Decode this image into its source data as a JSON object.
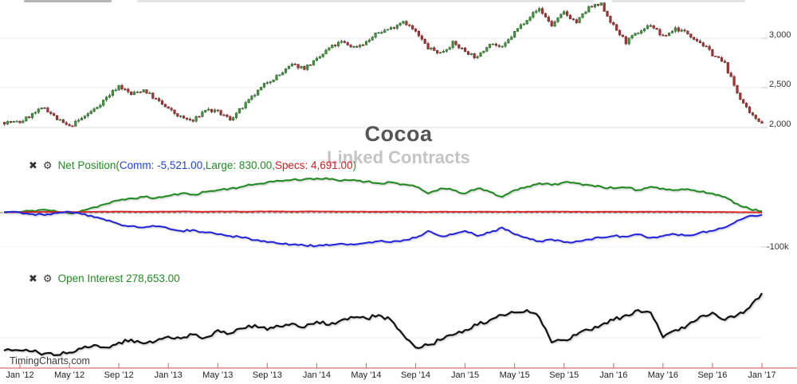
{
  "title": {
    "main": "Cocoa",
    "subtitle": "Linked Contracts"
  },
  "watermark": "TimingCharts.com",
  "colors": {
    "title_gray": "#555555",
    "subtitle_gray": "#c4c4c4",
    "legend_green": "#228b22",
    "legend_blue": "#2244cc",
    "legend_red": "#cc2222",
    "line_specs_green": "#1e8a1e",
    "line_comm_blue": "#2222dd",
    "line_large_red": "#dd2222",
    "line_open_interest_black": "#111111",
    "candle_up": "#44953f",
    "candle_up_border": "#2d6b2d",
    "candle_down": "#a23737",
    "candle_down_border": "#7c2626",
    "x_axis_red": "#e06c6c",
    "x_tick_red": "#d85f5f",
    "grid_gray": "#ededed",
    "watermark_gray": "#3c3c3c"
  },
  "net_legend": {
    "close_icon": "✖",
    "gear_icon": "⚙",
    "prefix": "Net Position(",
    "comm": "Comm: -5,521.00,",
    "large": "Large: 830.00,",
    "specs": "Specs: 4,691.00",
    "suffix": ")"
  },
  "oi_legend": {
    "close_icon": "✖",
    "gear_icon": "⚙",
    "label": "Open Interest 278,653.00"
  },
  "axes": {
    "price_ticks": [
      "3,000",
      "2,500",
      "2,000"
    ],
    "net_ticks": [
      "-100k"
    ],
    "x_labels": [
      "Jan '12",
      "May '12",
      "Sep '12",
      "Jan '13",
      "May '13",
      "Sep '13",
      "Jan '14",
      "May '14",
      "Sep '14",
      "Jan '15",
      "May '15",
      "Sep '15",
      "Jan '16",
      "May '16",
      "Sep '16",
      "Jan '17"
    ]
  },
  "chart_data": [
    {
      "type": "candlestick",
      "title": "Cocoa Linked Contracts price",
      "x_unit": "months from Jan 2012 (one tick every 4 months, Jan '12 to Jan '17)",
      "y_axis_ticks": [
        3000,
        2500,
        2000
      ],
      "monthly_close": [
        2150,
        2230,
        2300,
        2180,
        2100,
        2190,
        2280,
        2400,
        2520,
        2430,
        2480,
        2380,
        2280,
        2200,
        2160,
        2280,
        2250,
        2180,
        2300,
        2430,
        2560,
        2630,
        2730,
        2700,
        2780,
        2900,
        2960,
        2910,
        2960,
        3060,
        3100,
        3180,
        3060,
        2900,
        2850,
        2950,
        2870,
        2800,
        2960,
        2900,
        3060,
        3200,
        3300,
        3130,
        3260,
        3160,
        3310,
        3340,
        3120,
        2960,
        3060,
        3140,
        3010,
        3100,
        3050,
        2960,
        2840,
        2740,
        2450,
        2230,
        2150
      ]
    },
    {
      "type": "line",
      "title": "Net Position",
      "zero_line_dashed": true,
      "y_tick": "-100k",
      "series": [
        {
          "name": "Specs",
          "last_value": 4691,
          "monthly_values_thousands": [
            2,
            6,
            9,
            3,
            -2,
            6,
            16,
            26,
            36,
            42,
            46,
            43,
            49,
            56,
            53,
            61,
            66,
            71,
            76,
            83,
            89,
            93,
            96,
            98,
            100,
            98,
            93,
            96,
            91,
            86,
            89,
            83,
            76,
            56,
            71,
            66,
            56,
            71,
            61,
            46,
            66,
            76,
            86,
            81,
            89,
            86,
            81,
            76,
            71,
            73,
            66,
            76,
            71,
            66,
            69,
            61,
            56,
            46,
            26,
            11,
            4.7
          ]
        },
        {
          "name": "Large",
          "last_value": 830,
          "monthly_values_thousands": [
            1.5,
            2,
            2.5,
            2,
            1.8,
            2.2,
            2.8,
            3,
            3.2,
            3,
            2.8,
            3,
            3.2,
            3.5,
            3.2,
            3,
            3.4,
            3.6,
            3.2,
            3.5,
            3.8,
            3.6,
            3.4,
            3.6,
            3.8,
            3.5,
            3.2,
            3.4,
            3,
            2.8,
            3.2,
            3,
            2.8,
            2.4,
            3,
            2.8,
            2.6,
            3,
            2.8,
            2.4,
            2.8,
            3,
            3.2,
            3,
            3.2,
            3,
            2.8,
            2.6,
            2.8,
            3,
            2.8,
            3,
            2.8,
            2.6,
            2.8,
            2.4,
            2.2,
            2,
            1.6,
            1.2,
            0.83
          ]
        },
        {
          "name": "Comm",
          "last_value": -5521,
          "monthly_values_thousands": [
            1,
            -4,
            -7,
            -1,
            3,
            -4,
            -13,
            -23,
            -33,
            -39,
            -43,
            -40,
            -46,
            -53,
            -50,
            -58,
            -63,
            -68,
            -73,
            -80,
            -86,
            -90,
            -93,
            -95,
            -97,
            -95,
            -90,
            -93,
            -88,
            -83,
            -86,
            -80,
            -73,
            -53,
            -68,
            -63,
            -53,
            -68,
            -58,
            -43,
            -63,
            -73,
            -83,
            -78,
            -86,
            -83,
            -78,
            -73,
            -68,
            -70,
            -63,
            -73,
            -68,
            -63,
            -66,
            -58,
            -53,
            -43,
            -23,
            -9,
            -5.5
          ]
        }
      ]
    },
    {
      "type": "line",
      "title": "Open Interest",
      "last_value": 278653,
      "monthly_values_thousands": [
        164,
        162,
        158,
        155,
        160,
        168,
        175,
        170,
        180,
        186,
        178,
        183,
        192,
        188,
        196,
        190,
        205,
        198,
        208,
        215,
        205,
        212,
        218,
        210,
        222,
        215,
        225,
        230,
        228,
        235,
        225,
        195,
        170,
        175,
        185,
        195,
        205,
        215,
        225,
        235,
        240,
        245,
        230,
        180,
        185,
        195,
        205,
        215,
        225,
        235,
        245,
        240,
        190,
        205,
        215,
        232,
        240,
        225,
        235,
        250,
        278.653
      ]
    }
  ]
}
